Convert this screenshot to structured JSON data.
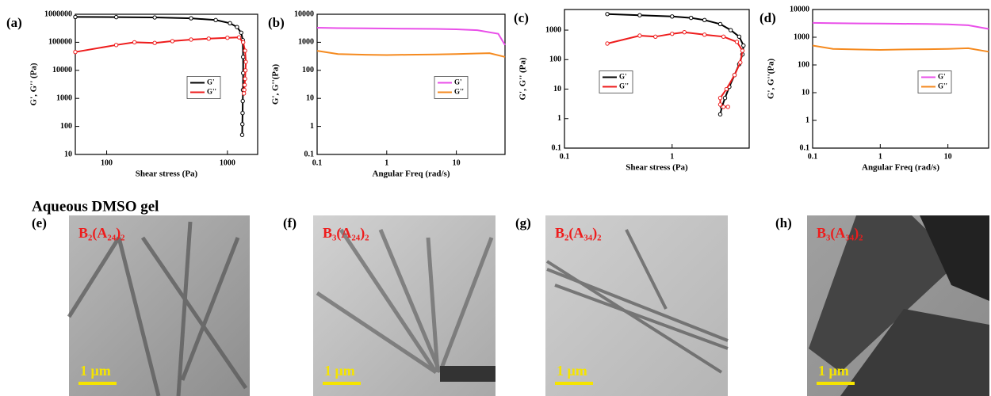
{
  "section_title": "Aqueous DMSO gel",
  "chart_data": [
    {
      "type": "line",
      "label": "(a)",
      "x_label": "Shear stress (Pa)",
      "y_label": "G', G'' (Pa)",
      "xscale": "log",
      "yscale": "log",
      "xlim": [
        55,
        1780
      ],
      "xticks": [
        100,
        1000
      ],
      "ylim": [
        10,
        1000000
      ],
      "yticks": [
        10,
        100,
        1000,
        10000,
        100000,
        1000000
      ],
      "legend": "right",
      "series": [
        {
          "name": "G'",
          "color": "#000000",
          "x": [
            55,
            120,
            250,
            500,
            800,
            1050,
            1200,
            1300,
            1340,
            1350,
            1350,
            1345,
            1340,
            1335,
            1330,
            1325
          ],
          "values": [
            800000,
            790000,
            770000,
            720000,
            620000,
            480000,
            350000,
            220000,
            120000,
            30000,
            8000,
            2000,
            800,
            300,
            120,
            50
          ]
        },
        {
          "name": "G''",
          "color": "#ee1c1c",
          "x": [
            55,
            120,
            170,
            250,
            350,
            500,
            700,
            1000,
            1250,
            1350,
            1400,
            1420,
            1410,
            1400,
            1390,
            1380,
            1370
          ],
          "values": [
            45000,
            80000,
            100000,
            95000,
            110000,
            125000,
            135000,
            145000,
            150000,
            100000,
            50000,
            20000,
            10000,
            5000,
            3000,
            2000,
            1500
          ]
        }
      ]
    },
    {
      "type": "line",
      "label": "(b)",
      "x_label": "Angular Freq (rad/s)",
      "y_label": "G', G''(Pa)",
      "xscale": "log",
      "yscale": "log",
      "xlim": [
        0.1,
        50
      ],
      "xticks": [
        0.1,
        1,
        10
      ],
      "ylim": [
        0.1,
        10000
      ],
      "yticks": [
        0.1,
        1,
        10,
        100,
        1000,
        10000
      ],
      "legend": "right",
      "series": [
        {
          "name": "G'",
          "color": "#e94fe9",
          "x": [
            0.1,
            0.2,
            0.5,
            1,
            2,
            5,
            10,
            20,
            40,
            50
          ],
          "values": [
            3300,
            3200,
            3150,
            3100,
            3050,
            3000,
            2900,
            2700,
            2000,
            800
          ]
        },
        {
          "name": "G''",
          "color": "#f58a1f",
          "x": [
            0.1,
            0.2,
            0.5,
            1,
            2,
            5,
            10,
            20,
            30,
            50
          ],
          "values": [
            500,
            380,
            360,
            350,
            360,
            370,
            380,
            400,
            410,
            300
          ]
        }
      ]
    },
    {
      "type": "line",
      "label": "(c)",
      "x_label": "Shear stress (Pa)",
      "y_label": "G', G'' (Pa)",
      "xscale": "log",
      "yscale": "log",
      "xlim": [
        0.1,
        5.2
      ],
      "xticks": [
        0.1,
        1
      ],
      "ylim": [
        0.1,
        5000
      ],
      "yticks": [
        0.1,
        1,
        10,
        100,
        1000
      ],
      "legend": "left",
      "series": [
        {
          "name": "G'",
          "color": "#000000",
          "x": [
            0.25,
            0.5,
            1,
            1.5,
            2,
            2.8,
            3.5,
            4.2,
            4.6,
            4.5,
            4.2,
            3.8,
            3.4,
            3.1,
            2.9,
            2.8
          ],
          "values": [
            3500,
            3200,
            2900,
            2600,
            2200,
            1600,
            1000,
            600,
            300,
            150,
            70,
            30,
            12,
            5,
            2.5,
            1.4
          ]
        },
        {
          "name": "G''",
          "color": "#ee1c1c",
          "x": [
            0.25,
            0.5,
            0.7,
            1,
            1.3,
            2,
            3,
            4,
            4.5,
            4.3,
            3.8,
            3.2,
            2.8,
            2.8,
            3,
            3.3
          ],
          "values": [
            350,
            650,
            600,
            750,
            850,
            700,
            600,
            400,
            200,
            80,
            30,
            10,
            5,
            3,
            2.5,
            2.5
          ]
        }
      ]
    },
    {
      "type": "line",
      "label": "(d)",
      "x_label": "Angular Freq (rad/s)",
      "y_label": "G', G''(Pa)",
      "xscale": "log",
      "yscale": "log",
      "xlim": [
        0.1,
        40
      ],
      "xticks": [
        0.1,
        1,
        10
      ],
      "ylim": [
        0.1,
        10000
      ],
      "yticks": [
        0.1,
        1,
        10,
        100,
        1000,
        10000
      ],
      "legend": "right",
      "series": [
        {
          "name": "G'",
          "color": "#e94fe9",
          "x": [
            0.1,
            0.2,
            0.5,
            1,
            2,
            5,
            10,
            20,
            40
          ],
          "values": [
            3300,
            3200,
            3150,
            3100,
            3050,
            3000,
            2900,
            2700,
            2000
          ]
        },
        {
          "name": "G''",
          "color": "#f58a1f",
          "x": [
            0.1,
            0.2,
            0.5,
            1,
            2,
            5,
            10,
            20,
            40
          ],
          "values": [
            500,
            380,
            360,
            350,
            360,
            370,
            380,
            400,
            300
          ]
        }
      ]
    }
  ],
  "images": [
    {
      "label": "(e)",
      "sample": "B₂(A₂₄)₂",
      "scale_bar": "1 μm"
    },
    {
      "label": "(f)",
      "sample": "B₃(A₂₄)₂",
      "scale_bar": "1 μm"
    },
    {
      "label": "(g)",
      "sample": "B₂(A₃₄)₂",
      "scale_bar": "1 μm"
    },
    {
      "label": "(h)",
      "sample": "B₃(A₃₄)₂",
      "scale_bar": "1 μm"
    }
  ]
}
